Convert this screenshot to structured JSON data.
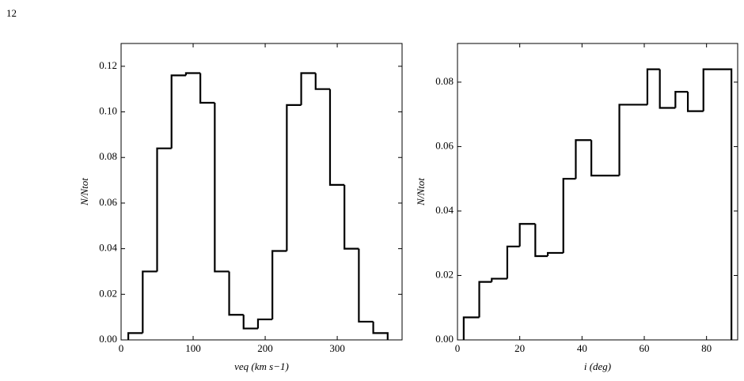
{
  "page_number": "12",
  "chart_data": [
    {
      "type": "histogram",
      "xlabel": "veq (km s−1)",
      "ylabel": "N/Ntot",
      "color": "#000000",
      "bins": [
        10,
        30,
        50,
        70,
        90,
        110,
        130,
        150,
        170,
        190,
        210,
        230,
        250,
        270,
        290,
        310,
        330,
        350,
        370
      ],
      "values": [
        0.003,
        0.03,
        0.084,
        0.116,
        0.117,
        0.104,
        0.03,
        0.011,
        0.005,
        0.009,
        0.039,
        0.103,
        0.117,
        0.11,
        0.068,
        0.04,
        0.008,
        0.003
      ],
      "xlim": [
        0,
        390
      ],
      "xticks": [
        0,
        100,
        200,
        300
      ],
      "ylim": [
        0,
        0.13
      ],
      "yticks": [
        {
          "value": 0,
          "label": "0.00"
        },
        {
          "value": 0.02,
          "label": "0.02"
        },
        {
          "value": 0.04,
          "label": "0.04"
        },
        {
          "value": 0.06,
          "label": "0.06"
        },
        {
          "value": 0.08,
          "label": "0.08"
        },
        {
          "value": 0.1,
          "label": "0.10"
        },
        {
          "value": 0.12,
          "label": "0.12"
        }
      ]
    },
    {
      "type": "histogram",
      "xlabel": "i (deg)",
      "ylabel": "N/Ntot",
      "color": "#000000",
      "bins": [
        2,
        7,
        11,
        16,
        20,
        25,
        29,
        34,
        38,
        43,
        52,
        61,
        65,
        70,
        74,
        79,
        88
      ],
      "values": [
        0.007,
        0.018,
        0.019,
        0.029,
        0.036,
        0.026,
        0.027,
        0.05,
        0.062,
        0.051,
        0.073,
        0.084,
        0.072,
        0.077,
        0.071,
        0.084
      ],
      "xlim": [
        0,
        90
      ],
      "xticks": [
        0,
        20,
        40,
        60,
        80
      ],
      "ylim": [
        0,
        0.092
      ],
      "yticks": [
        {
          "value": 0,
          "label": "0.00"
        },
        {
          "value": 0.02,
          "label": "0.02"
        },
        {
          "value": 0.04,
          "label": "0.04"
        },
        {
          "value": 0.06,
          "label": "0.06"
        },
        {
          "value": 0.08,
          "label": "0.08"
        }
      ]
    }
  ]
}
